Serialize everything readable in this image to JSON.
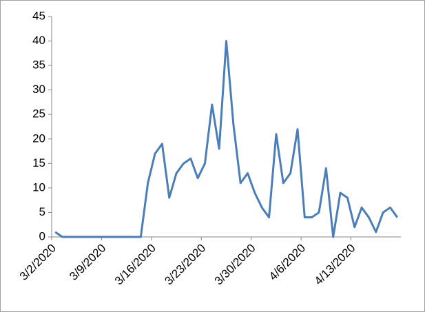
{
  "chart_data": {
    "type": "line",
    "categories": [
      "3/2/2020",
      null,
      null,
      null,
      null,
      null,
      null,
      "3/9/2020",
      null,
      null,
      null,
      null,
      null,
      null,
      "3/16/2020",
      null,
      null,
      null,
      null,
      null,
      null,
      "3/23/2020",
      null,
      null,
      null,
      null,
      null,
      null,
      "3/30/2020",
      null,
      null,
      null,
      null,
      null,
      null,
      "4/6/2020",
      null,
      null,
      null,
      null,
      null,
      null,
      "4/13/2020",
      null,
      null,
      null,
      null,
      null,
      null
    ],
    "values": [
      1,
      0,
      0,
      0,
      0,
      0,
      0,
      0,
      0,
      0,
      0,
      0,
      0,
      11,
      17,
      19,
      8,
      13,
      15,
      16,
      12,
      15,
      27,
      18,
      40,
      23,
      11,
      13,
      9,
      6,
      4,
      21,
      11,
      13,
      22,
      4,
      4,
      5,
      14,
      0,
      9,
      8,
      2,
      6,
      4,
      1,
      5,
      6,
      4
    ],
    "color": "#4a7ebb",
    "ylim": [
      0,
      45
    ],
    "yticks": [
      0,
      5,
      10,
      15,
      20,
      25,
      30,
      35,
      40,
      45
    ],
    "grid": false
  }
}
